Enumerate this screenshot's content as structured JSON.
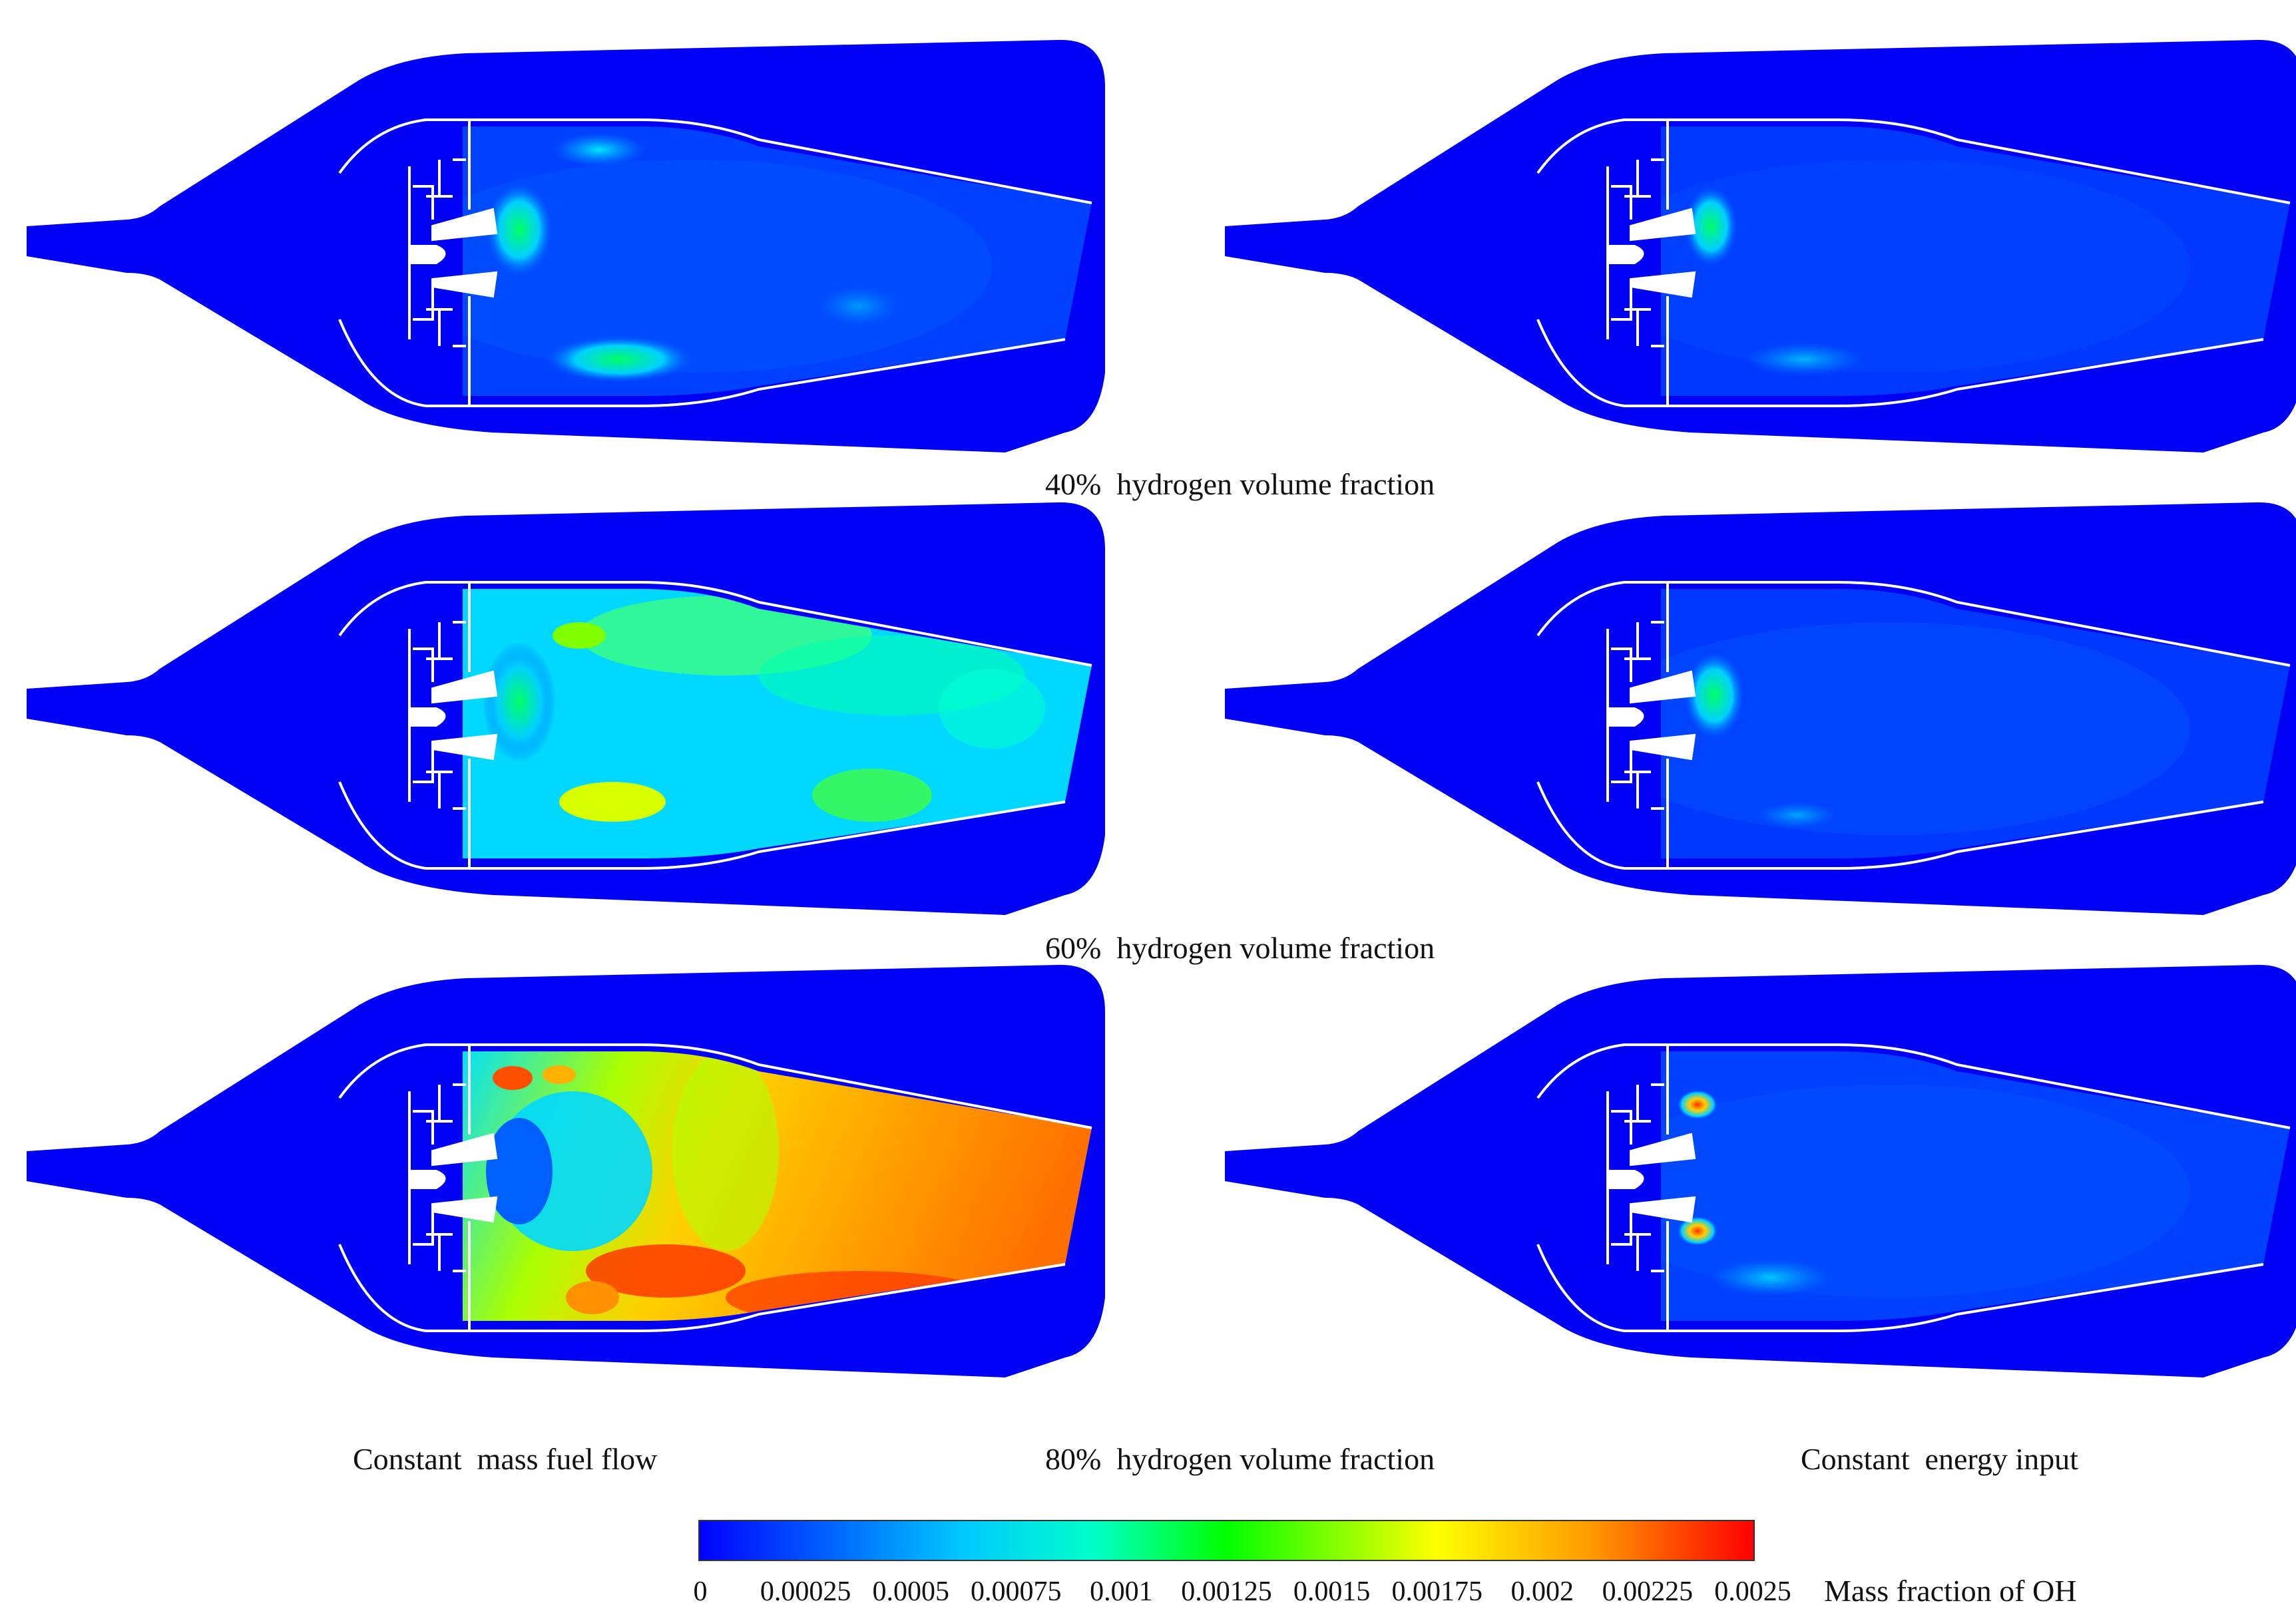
{
  "rows": [
    {
      "label": "40%  hydrogen volume fraction"
    },
    {
      "label": "60%  hydrogen volume fraction"
    },
    {
      "label": "80%  hydrogen volume fraction"
    }
  ],
  "columns": [
    {
      "label": "Constant  mass fuel flow"
    },
    {
      "label": "Constant  energy input"
    }
  ],
  "colorbar": {
    "title": "Mass fraction of OH",
    "min": 0,
    "max": 0.0025,
    "ticks": [
      "0",
      "0.00025",
      "0.0005",
      "0.00075",
      "0.001",
      "0.00125",
      "0.0015",
      "0.00175",
      "0.002",
      "0.00225",
      "0.0025"
    ],
    "colors": [
      "#0000ff",
      "#0064ff",
      "#00dcff",
      "#00ff6e",
      "#5aff00",
      "#ffff00",
      "#ffb400",
      "#ff5a00",
      "#ff0000"
    ]
  }
}
